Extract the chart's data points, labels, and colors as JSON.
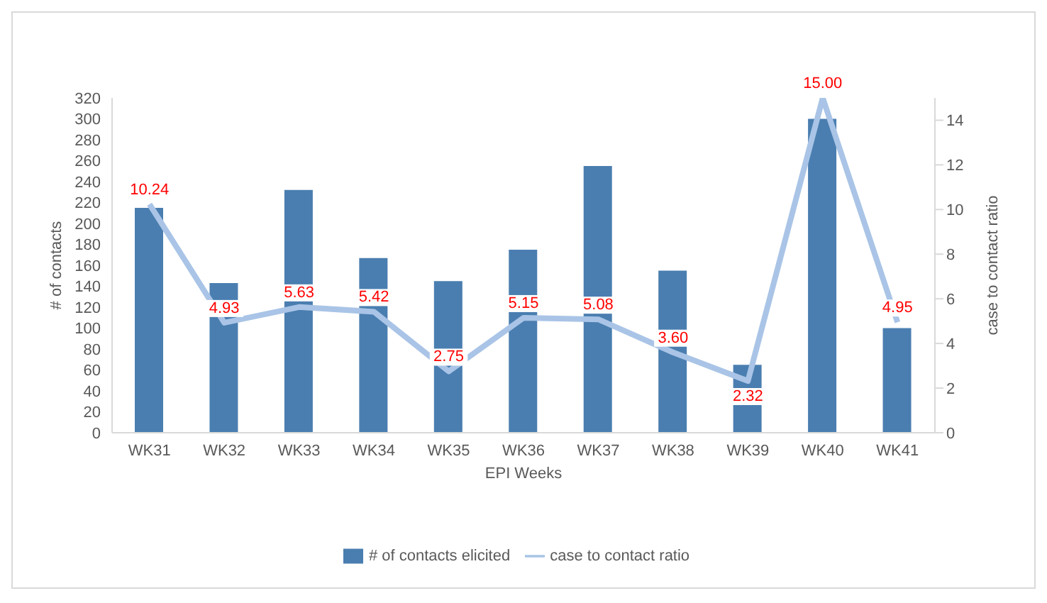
{
  "chart_data": {
    "type": "bar",
    "xlabel": "EPI Weeks",
    "ylabel": "# of contacts",
    "y2label": "case to contact ratio",
    "categories": [
      "WK31",
      "WK32",
      "WK33",
      "WK34",
      "WK35",
      "WK36",
      "WK37",
      "WK38",
      "WK39",
      "WK40",
      "WK41"
    ],
    "series": [
      {
        "name": "# of contacts elicited",
        "color": "#4a7eb0",
        "values": [
          215,
          143,
          232,
          167,
          145,
          175,
          255,
          155,
          65,
          300,
          100
        ]
      },
      {
        "name": "case to contact ratio",
        "type": "line",
        "axis": "y2",
        "color": "#a9c4e6",
        "values": [
          10.24,
          4.93,
          5.63,
          5.42,
          2.75,
          5.15,
          5.08,
          3.6,
          2.32,
          15.0,
          4.95
        ],
        "value_labels": [
          "10.24",
          "4.93",
          "5.63",
          "5.42",
          "2.75",
          "5.15",
          "5.08",
          "3.60",
          "2.32",
          "15.00",
          "4.95"
        ]
      }
    ],
    "ylim": [
      0,
      320
    ],
    "yticks": [
      0,
      20,
      40,
      60,
      80,
      100,
      120,
      140,
      160,
      180,
      200,
      220,
      240,
      260,
      280,
      300,
      320
    ],
    "y2lim": [
      0,
      15
    ],
    "y2ticks": [
      0,
      2,
      4,
      6,
      8,
      10,
      12,
      14
    ],
    "grid": false,
    "legend": "bottom",
    "marker": "none"
  }
}
